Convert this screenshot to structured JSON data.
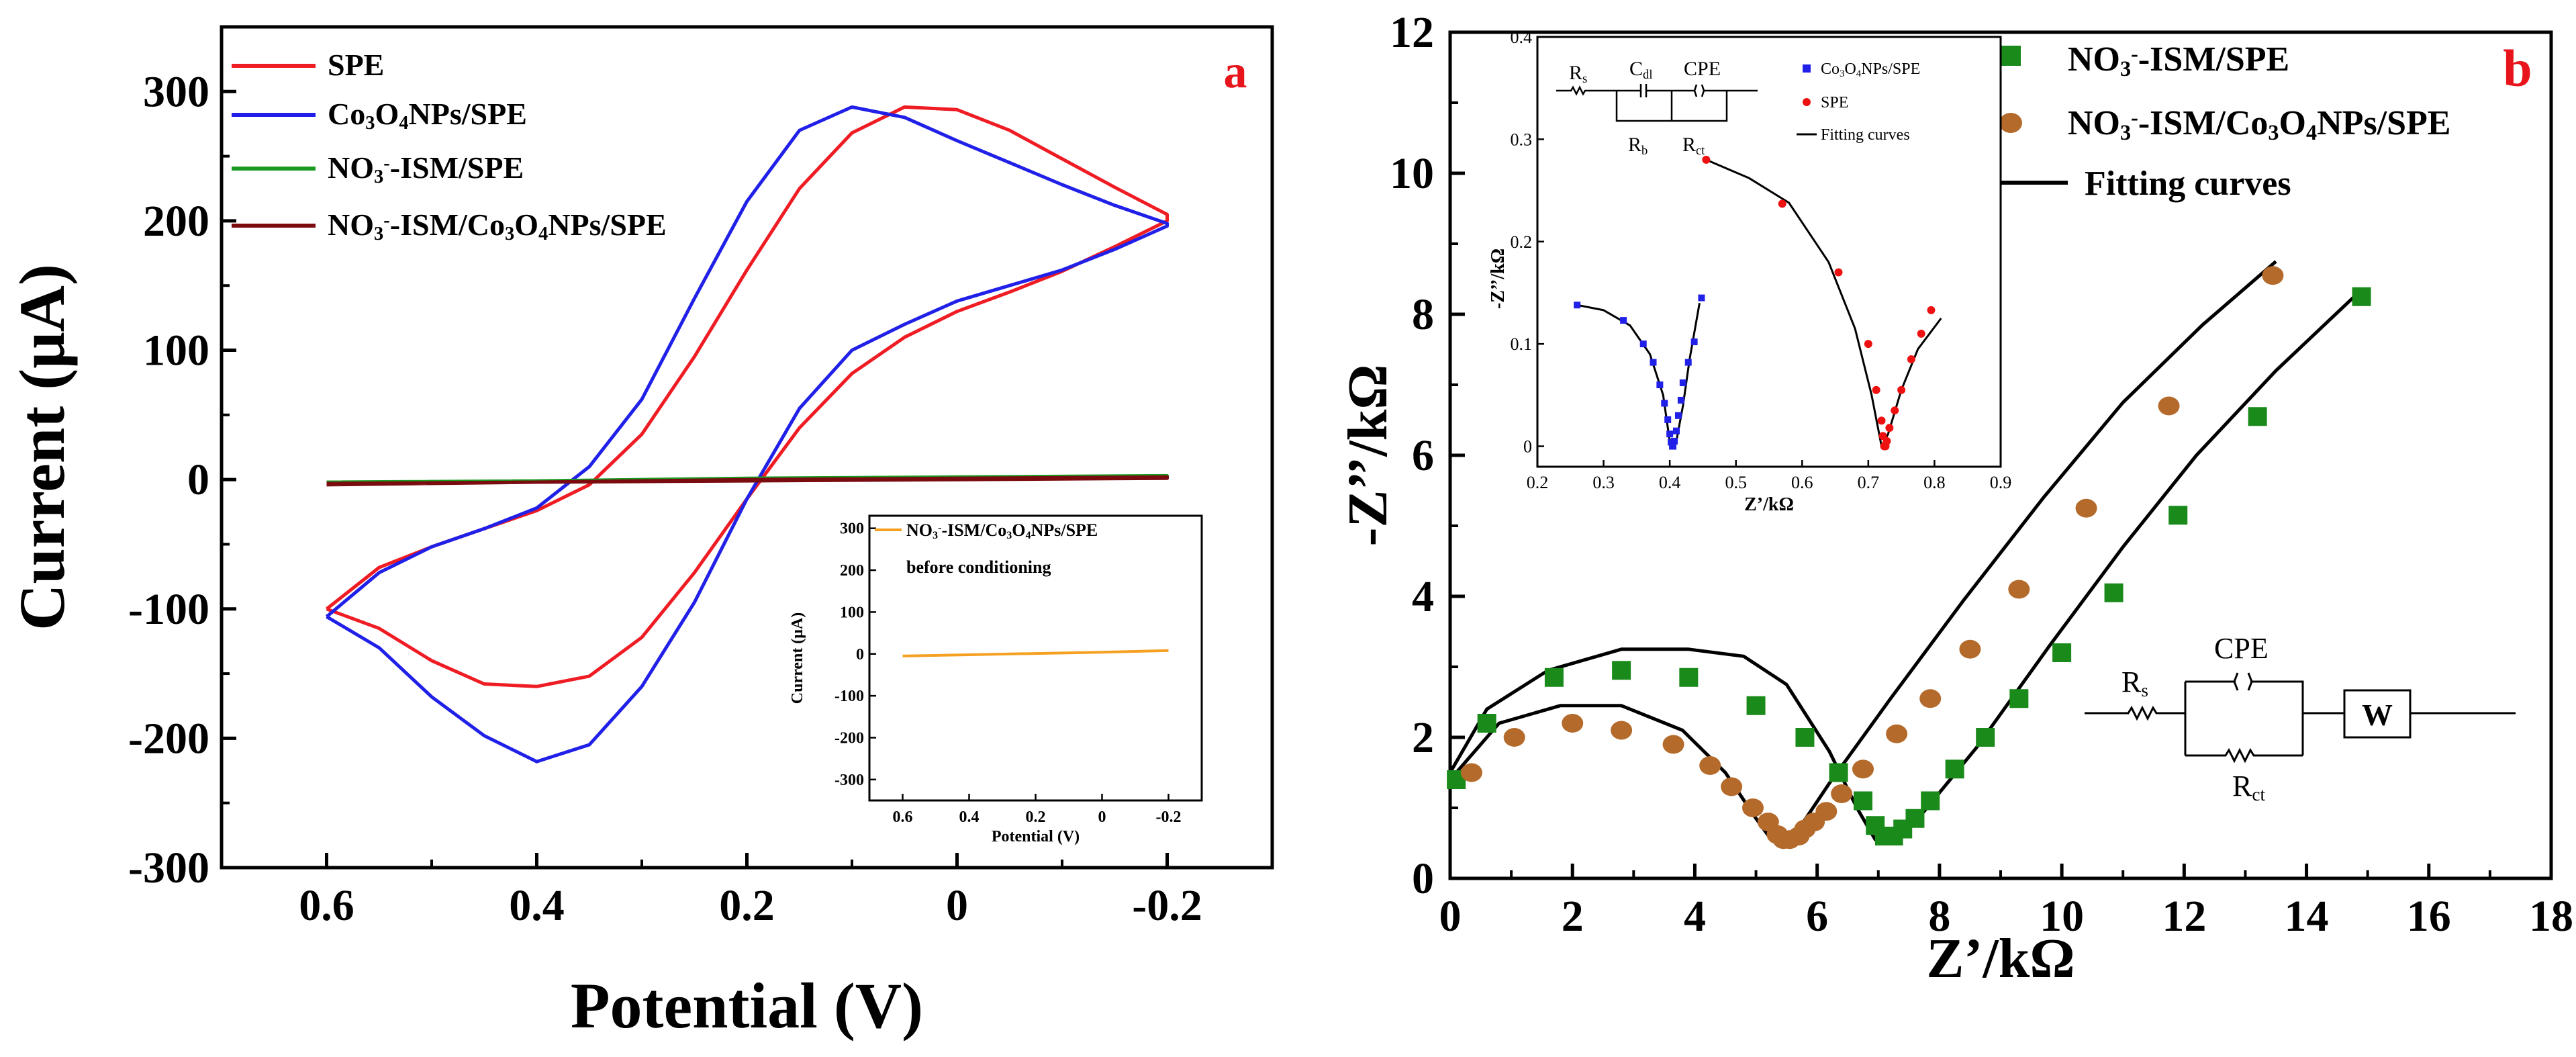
{
  "chart_data": [
    {
      "panel": "a",
      "type": "line",
      "title": "",
      "xlabel": "Potential (V)",
      "ylabel": "Current (μA)",
      "xlim": [
        0.7,
        -0.3
      ],
      "ylim": [
        -300,
        350
      ],
      "xticks": [
        "0.6",
        "0.4",
        "0.2",
        "0",
        "-0.2"
      ],
      "xtick_values": [
        0.6,
        0.4,
        0.2,
        0,
        -0.2
      ],
      "yticks": [
        "-300",
        "-200",
        "-100",
        "0",
        "100",
        "200",
        "300"
      ],
      "ytick_values": [
        -300,
        -200,
        -100,
        0,
        100,
        200,
        300
      ],
      "panel_label": "a",
      "legend_position": "top-left",
      "series": [
        {
          "name": "SPE",
          "legend": [
            "SPE"
          ],
          "color": "#ef1c24",
          "x": [
            0.6,
            0.55,
            0.5,
            0.45,
            0.4,
            0.35,
            0.3,
            0.25,
            0.2,
            0.15,
            0.1,
            0.05,
            0.0,
            -0.05,
            -0.1,
            -0.15,
            -0.2,
            -0.2,
            -0.15,
            -0.1,
            -0.05,
            0.0,
            0.05,
            0.1,
            0.15,
            0.2,
            0.25,
            0.3,
            0.35,
            0.4,
            0.45,
            0.5,
            0.55,
            0.6
          ],
          "y": [
            -100,
            -68,
            -52,
            -38,
            -24,
            -4,
            35,
            95,
            162,
            225,
            268,
            288,
            286,
            270,
            248,
            226,
            205,
            200,
            180,
            161,
            145,
            130,
            110,
            82,
            40,
            -15,
            -72,
            -122,
            -152,
            -160,
            -158,
            -140,
            -115,
            -100
          ]
        },
        {
          "name": "Co3O4NPs/SPE",
          "legend": [
            "Co",
            "3",
            "O",
            "4",
            "NPs/SPE"
          ],
          "color": "#2020e8",
          "x": [
            0.6,
            0.55,
            0.5,
            0.45,
            0.4,
            0.35,
            0.3,
            0.25,
            0.2,
            0.15,
            0.1,
            0.05,
            0.0,
            -0.05,
            -0.1,
            -0.15,
            -0.2,
            -0.2,
            -0.15,
            -0.1,
            -0.05,
            0.0,
            0.05,
            0.1,
            0.15,
            0.2,
            0.25,
            0.3,
            0.35,
            0.4,
            0.45,
            0.5,
            0.55,
            0.6
          ],
          "y": [
            -106,
            -72,
            -52,
            -38,
            -22,
            10,
            62,
            140,
            215,
            270,
            288,
            280,
            262,
            245,
            228,
            212,
            198,
            196,
            178,
            162,
            150,
            138,
            120,
            100,
            55,
            -15,
            -95,
            -160,
            -205,
            -218,
            -198,
            -168,
            -130,
            -106
          ]
        },
        {
          "name": "NO3-ISM/SPE",
          "legend": [
            "NO",
            "3",
            "-",
            "-ISM/SPE"
          ],
          "color": "#1a9a22",
          "x": [
            0.6,
            0.4,
            0.2,
            0.0,
            -0.2,
            -0.2,
            0.0,
            0.2,
            0.4,
            0.6
          ],
          "y": [
            -3,
            -1,
            1,
            2,
            3,
            2,
            1,
            0,
            -1,
            -2
          ]
        },
        {
          "name": "NO3-ISM/Co3O4NPs/SPE",
          "legend": [
            "NO",
            "3",
            "-",
            "-ISM/Co",
            "3",
            "O",
            "4",
            "NPs/SPE"
          ],
          "color": "#7a0c10",
          "x": [
            0.6,
            0.4,
            0.2,
            0.0,
            -0.2,
            -0.2,
            0.0,
            0.2,
            0.4,
            0.6
          ],
          "y": [
            -4,
            -2,
            0,
            1,
            2,
            1,
            0,
            -1,
            -2,
            -3
          ]
        }
      ],
      "inset": {
        "type": "line",
        "xlabel": "Potential (V)",
        "ylabel": "Current (μA)",
        "xlim": [
          0.7,
          -0.3
        ],
        "ylim": [
          -350,
          330
        ],
        "xticks": [
          "0.6",
          "0.4",
          "0.2",
          "0",
          "-0.2"
        ],
        "xtick_values": [
          0.6,
          0.4,
          0.2,
          0,
          -0.2
        ],
        "yticks": [
          "300",
          "200",
          "100",
          "0",
          "-100",
          "-200",
          "-300"
        ],
        "ytick_values": [
          300,
          200,
          100,
          0,
          -100,
          -200,
          -300
        ],
        "legend_line1": [
          "NO",
          "3",
          "-",
          "-ISM/Co",
          "3",
          "O",
          "4",
          "NPs/SPE"
        ],
        "legend_line2": "before conditioning",
        "series": [
          {
            "name": "NO3-ISM/Co3O4NPs/SPE before conditioning",
            "color": "#f5a020",
            "x": [
              0.6,
              0.4,
              0.2,
              0.0,
              -0.2
            ],
            "y": [
              -5,
              -2,
              1,
              4,
              8
            ]
          }
        ]
      }
    },
    {
      "panel": "b",
      "type": "scatter",
      "title": "",
      "xlabel": "Z’/kΩ",
      "ylabel": "-Z’’/kΩ",
      "xlim": [
        0,
        18
      ],
      "ylim": [
        0,
        12
      ],
      "xticks": [
        "0",
        "2",
        "4",
        "6",
        "8",
        "10",
        "12",
        "14",
        "16",
        "18"
      ],
      "xtick_values": [
        0,
        2,
        4,
        6,
        8,
        10,
        12,
        14,
        16,
        18
      ],
      "yticks": [
        "0",
        "2",
        "4",
        "6",
        "8",
        "10",
        "12"
      ],
      "ytick_values": [
        0,
        2,
        4,
        6,
        8,
        10,
        12
      ],
      "panel_label": "b",
      "legend_position": "top-right",
      "series": [
        {
          "name": "NO3-ISM/SPE",
          "legend": [
            "NO",
            "3",
            "-",
            "-ISM/SPE"
          ],
          "marker": "square",
          "color": "#1a8a1a",
          "x": [
            0.1,
            0.6,
            1.7,
            2.8,
            3.9,
            5.0,
            5.8,
            6.35,
            6.75,
            6.95,
            7.1,
            7.25,
            7.4,
            7.6,
            7.85,
            8.25,
            8.75,
            9.3,
            10.0,
            10.85,
            11.9,
            13.2,
            14.9
          ],
          "y": [
            1.4,
            2.2,
            2.85,
            2.95,
            2.85,
            2.45,
            2.0,
            1.5,
            1.1,
            0.75,
            0.6,
            0.6,
            0.7,
            0.85,
            1.1,
            1.55,
            2.0,
            2.55,
            3.2,
            4.05,
            5.15,
            6.55,
            8.25
          ]
        },
        {
          "name": "NO3-ISM/Co3O4NPs/SPE",
          "legend": [
            "NO",
            "3",
            "-",
            "-ISM/Co",
            "3",
            "O",
            "4",
            "NPs/SPE"
          ],
          "marker": "circle",
          "color": "#b36a2a",
          "x": [
            0.35,
            1.05,
            2.0,
            2.8,
            3.65,
            4.25,
            4.6,
            4.95,
            5.2,
            5.35,
            5.45,
            5.55,
            5.7,
            5.8,
            5.95,
            6.15,
            6.4,
            6.75,
            7.3,
            7.85,
            8.5,
            9.3,
            10.4,
            11.75,
            13.45
          ],
          "y": [
            1.5,
            2.0,
            2.2,
            2.1,
            1.9,
            1.6,
            1.3,
            1.0,
            0.8,
            0.62,
            0.55,
            0.55,
            0.6,
            0.7,
            0.8,
            0.95,
            1.2,
            1.55,
            2.05,
            2.55,
            3.25,
            4.1,
            5.25,
            6.7,
            8.55
          ]
        },
        {
          "name": "Fitting curves",
          "legend": [
            "Fitting curves"
          ],
          "type": "line",
          "color": "#000000",
          "segments": [
            {
              "x": [
                0.0,
                0.8,
                1.8,
                2.8,
                3.8,
                4.5,
                5.0,
                5.25,
                5.45,
                5.7,
                6.2,
                7.2,
                8.4,
                9.7,
                11.0,
                12.3,
                13.5
              ],
              "y": [
                1.4,
                2.2,
                2.45,
                2.45,
                2.1,
                1.5,
                0.85,
                0.55,
                0.48,
                0.7,
                1.35,
                2.55,
                3.95,
                5.4,
                6.75,
                7.85,
                8.75
              ]
            },
            {
              "x": [
                0.0,
                0.6,
                1.6,
                2.8,
                3.9,
                4.8,
                5.5,
                6.2,
                6.65,
                6.95,
                7.2,
                7.7,
                8.6,
                9.8,
                11.0,
                12.2,
                13.5,
                14.9
              ],
              "y": [
                1.5,
                2.4,
                2.95,
                3.25,
                3.25,
                3.15,
                2.75,
                1.8,
                1.0,
                0.55,
                0.52,
                0.9,
                1.85,
                3.3,
                4.7,
                6.0,
                7.2,
                8.35
              ]
            }
          ]
        }
      ],
      "circuit": {
        "labels": {
          "rs": [
            "R",
            "s"
          ],
          "cpe": [
            "CPE"
          ],
          "w": [
            "W"
          ],
          "rct": [
            "R",
            "ct"
          ]
        }
      },
      "inset": {
        "type": "scatter",
        "xlabel": "Z’/kΩ",
        "ylabel": "-Z’’/kΩ",
        "xlim": [
          0.2,
          0.9
        ],
        "ylim": [
          -0.02,
          0.4
        ],
        "xticks": [
          "0.2",
          "0.3",
          "0.4",
          "0.5",
          "0.6",
          "0.7",
          "0.8",
          "0.9"
        ],
        "xtick_values": [
          0.2,
          0.3,
          0.4,
          0.5,
          0.6,
          0.7,
          0.8,
          0.9
        ],
        "yticks": [
          "0",
          "0.1",
          "0.2",
          "0.3",
          "0.4"
        ],
        "ytick_values": [
          0,
          0.1,
          0.2,
          0.3,
          0.4
        ],
        "series": [
          {
            "name": "Co3O4NPs/SPE",
            "legend": [
              "Co",
              "3",
              "O",
              "4",
              "NPs/SPE"
            ],
            "marker": "square",
            "color": "#2020e8",
            "x": [
              0.26,
              0.33,
              0.36,
              0.375,
              0.385,
              0.392,
              0.397,
              0.4,
              0.402,
              0.404,
              0.405,
              0.407,
              0.41,
              0.413,
              0.417,
              0.42,
              0.428,
              0.437,
              0.448
            ],
            "y": [
              0.138,
              0.123,
              0.1,
              0.082,
              0.06,
              0.042,
              0.026,
              0.012,
              0.004,
              0.0,
              0.0,
              0.005,
              0.015,
              0.03,
              0.045,
              0.062,
              0.082,
              0.102,
              0.145
            ]
          },
          {
            "name": "SPE",
            "legend": [
              "SPE"
            ],
            "marker": "circle",
            "color": "#ee1111",
            "x": [
              0.455,
              0.57,
              0.655,
              0.7,
              0.712,
              0.72,
              0.722,
              0.724,
              0.726,
              0.728,
              0.732,
              0.74,
              0.75,
              0.765,
              0.78,
              0.795
            ],
            "y": [
              0.28,
              0.237,
              0.17,
              0.1,
              0.055,
              0.025,
              0.01,
              0.0,
              0.0,
              0.005,
              0.018,
              0.035,
              0.055,
              0.085,
              0.11,
              0.133
            ]
          },
          {
            "name": "Fitting curves",
            "legend": [
              "Fitting curves"
            ],
            "type": "line",
            "color": "#000000",
            "segments": [
              {
                "x": [
                  0.26,
                  0.3,
                  0.34,
                  0.37,
                  0.39,
                  0.4,
                  0.41,
                  0.42,
                  0.43,
                  0.445
                ],
                "y": [
                  0.138,
                  0.133,
                  0.118,
                  0.09,
                  0.05,
                  0.005,
                  0.005,
                  0.04,
                  0.085,
                  0.14
                ]
              },
              {
                "x": [
                  0.455,
                  0.52,
                  0.58,
                  0.64,
                  0.68,
                  0.705,
                  0.72,
                  0.73,
                  0.75,
                  0.775,
                  0.81
                ],
                "y": [
                  0.28,
                  0.262,
                  0.238,
                  0.18,
                  0.115,
                  0.05,
                  0.0,
                  0.012,
                  0.055,
                  0.095,
                  0.125
                ]
              }
            ]
          }
        ],
        "circuit": {
          "labels": {
            "rs": [
              "R",
              "s"
            ],
            "cdl": [
              "C",
              "dl"
            ],
            "cpe": [
              "CPE"
            ],
            "rb": [
              "R",
              "b"
            ],
            "rct": [
              "R",
              "ct"
            ]
          }
        }
      }
    }
  ]
}
